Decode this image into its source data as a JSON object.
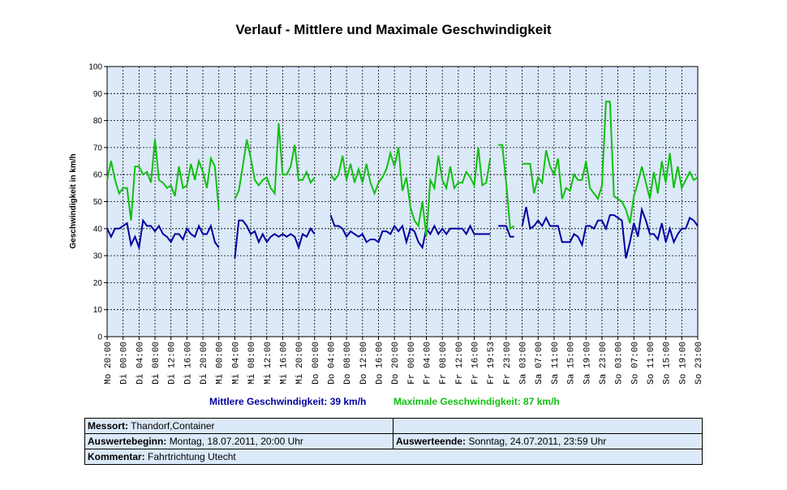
{
  "chart_data": {
    "type": "line",
    "title": "Verlauf - Mittlere und Maximale Geschwindigkeit",
    "y_label": "Geschwindigkeit in km/h",
    "categories": [
      "Mo 20:00",
      null,
      null,
      null,
      "Di 00:00",
      null,
      null,
      null,
      "Di 04:00",
      null,
      null,
      null,
      "Di 08:00",
      null,
      null,
      null,
      "Di 12:00",
      null,
      null,
      null,
      "Di 16:00",
      null,
      null,
      null,
      "Di 20:00",
      null,
      null,
      null,
      "Mi 00:00",
      null,
      null,
      null,
      "Mi 04:00",
      null,
      null,
      null,
      "Mi 08:00",
      null,
      null,
      null,
      "Mi 12:00",
      null,
      null,
      null,
      "Mi 16:00",
      null,
      null,
      null,
      "Mi 20:00",
      null,
      null,
      null,
      "Do 00:00",
      null,
      null,
      null,
      "Do 04:00",
      null,
      null,
      null,
      "Do 08:00",
      null,
      null,
      null,
      "Do 12:00",
      null,
      null,
      null,
      "Do 16:00",
      null,
      null,
      null,
      "Do 20:00",
      null,
      null,
      null,
      "Fr 00:00",
      null,
      null,
      null,
      "Fr 04:00",
      null,
      null,
      null,
      "Fr 08:00",
      null,
      null,
      null,
      "Fr 12:00",
      null,
      null,
      null,
      "Fr 16:00",
      null,
      null,
      null,
      "Fr 19:53",
      null,
      null,
      null,
      "Fr 23:00",
      null,
      null,
      null,
      "Sa 03:00",
      null,
      null,
      null,
      "Sa 07:00",
      null,
      null,
      null,
      "Sa 11:00",
      null,
      null,
      null,
      "Sa 15:00",
      null,
      null,
      null,
      "Sa 19:00",
      null,
      null,
      null,
      "Sa 23:00",
      null,
      null,
      null,
      "So 03:00",
      null,
      null,
      null,
      "So 07:00",
      null,
      null,
      null,
      "So 11:00",
      null,
      null,
      null,
      "So 15:00",
      null,
      null,
      null,
      "So 19:00",
      null,
      null,
      null,
      "So 23:00"
    ],
    "series": [
      {
        "name": "Mittlere Geschwindigkeit: 39 km/h",
        "color": "#0000a0",
        "values": [
          40,
          37,
          40,
          40,
          41,
          42,
          34,
          37,
          33,
          43,
          41,
          41,
          39,
          41,
          38,
          37,
          35,
          38,
          38,
          36,
          40,
          38,
          37,
          41,
          38,
          38,
          41,
          35,
          33,
          null,
          null,
          null,
          29,
          43,
          43,
          41,
          38,
          39,
          35,
          38,
          35,
          37,
          38,
          37,
          38,
          37,
          38,
          37,
          33,
          38,
          37,
          40,
          38,
          null,
          null,
          null,
          45,
          41,
          41,
          40,
          37,
          39,
          38,
          37,
          38,
          35,
          36,
          36,
          35,
          39,
          39,
          38,
          41,
          39,
          41,
          35,
          40,
          39,
          35,
          33,
          40,
          38,
          41,
          38,
          40,
          38,
          40,
          40,
          40,
          40,
          38,
          41,
          38,
          38,
          38,
          38,
          38,
          null,
          41,
          41,
          41,
          37,
          37,
          null,
          41,
          48,
          40,
          41,
          43,
          41,
          44,
          41,
          41,
          41,
          35,
          35,
          35,
          38,
          37,
          34,
          41,
          41,
          40,
          43,
          43,
          40,
          45,
          45,
          44,
          43,
          29,
          35,
          42,
          37,
          47,
          43,
          38,
          38,
          36,
          42,
          35,
          40,
          35,
          38,
          40,
          40,
          44,
          43,
          41
        ]
      },
      {
        "name": "Maximale Geschwindigkeit: 87 km/h",
        "color": "#10c010",
        "values": [
          58,
          65,
          58,
          53,
          55,
          55,
          43,
          63,
          63,
          60,
          61,
          57,
          73,
          58,
          57,
          55,
          56,
          52,
          63,
          55,
          56,
          64,
          58,
          65,
          61,
          55,
          66,
          63,
          47,
          null,
          null,
          null,
          51,
          54,
          63,
          73,
          66,
          58,
          56,
          58,
          59,
          55,
          53,
          79,
          60,
          60,
          63,
          71,
          58,
          58,
          61,
          57,
          59,
          null,
          null,
          null,
          60,
          58,
          60,
          67,
          58,
          64,
          57,
          62,
          57,
          64,
          57,
          53,
          57,
          59,
          62,
          68,
          63,
          70,
          54,
          59,
          48,
          43,
          41,
          50,
          37,
          58,
          55,
          67,
          58,
          55,
          63,
          55,
          57,
          57,
          61,
          59,
          56,
          70,
          56,
          57,
          66,
          null,
          71,
          71,
          57,
          40,
          41,
          null,
          64,
          64,
          64,
          53,
          59,
          57,
          69,
          63,
          60,
          66,
          51,
          55,
          54,
          60,
          58,
          58,
          65,
          55,
          53,
          51,
          56,
          87,
          87,
          52,
          51,
          50,
          47,
          42,
          52,
          57,
          63,
          57,
          51,
          61,
          53,
          65,
          57,
          68,
          55,
          63,
          55,
          58,
          61,
          58,
          59
        ]
      }
    ],
    "ylim": [
      0,
      100
    ],
    "yticks": [
      0,
      10,
      20,
      30,
      40,
      50,
      60,
      70,
      80,
      90,
      100
    ],
    "grid": true
  },
  "info": {
    "messort": {
      "label": "Messort:",
      "value": "Thandorf,Container"
    },
    "beginn": {
      "label": "Auswertebeginn:",
      "value": "Montag, 18.07.2011, 20:00 Uhr"
    },
    "ende": {
      "label": "Auswerteende:",
      "value": "Sonntag, 24.07.2011, 23:59 Uhr"
    },
    "kommentar": {
      "label": "Kommentar:",
      "value": "Fahrtrichtung Utecht"
    }
  }
}
